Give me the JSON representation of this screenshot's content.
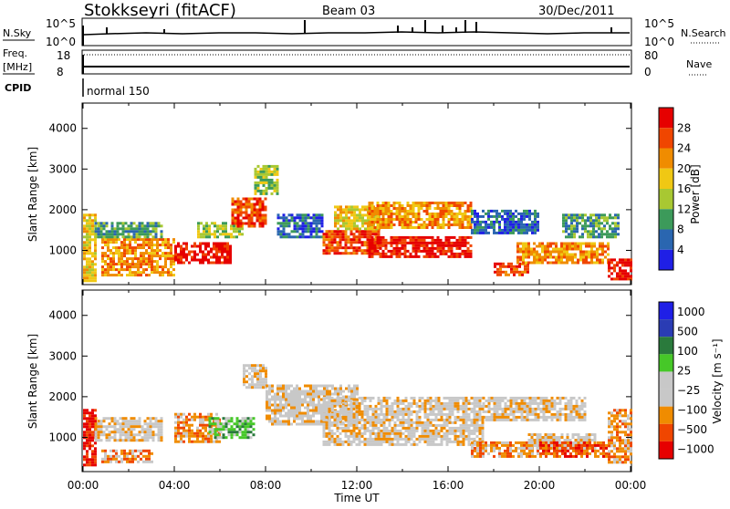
{
  "header": {
    "radar": "Stokkseyri (fitACF)",
    "beam": "Beam 03",
    "date": "30/Dec/2011"
  },
  "aux_panels": {
    "nsky_label": "N.Sky",
    "nsky_ticks": [
      "10^5",
      "10^0"
    ],
    "nsearch_label": "N.Search",
    "nsearch_ticks": [
      "10^5",
      "10^0"
    ],
    "freq_label": "Freq.",
    "freq_unit": "[MHz]",
    "freq_ticks": [
      "18",
      "8"
    ],
    "nave_label": "Nave",
    "nave_ticks": [
      "80",
      "0"
    ],
    "cpid_label": "CPID",
    "cpid_value": "normal 150"
  },
  "colors": {
    "power": [
      "#1f1fe6",
      "#2a66b0",
      "#3c9a5a",
      "#a8c832",
      "#f0c814",
      "#f08c00",
      "#f04600",
      "#e60000"
    ],
    "velocity": [
      "#e60000",
      "#f04600",
      "#f08c00",
      "#c8c8c8",
      "#c8c8c8",
      "#46c828",
      "#2a7a3c",
      "#2a3cb4",
      "#1f1fe6"
    ]
  },
  "chart_data": [
    {
      "type": "heatmap",
      "title": "Power",
      "ylabel": "Slant Range [km]",
      "xlabel": "Time UT",
      "xlim": [
        0,
        24
      ],
      "ylim": [
        180,
        4600
      ],
      "x_ticks": [
        "00:00",
        "04:00",
        "08:00",
        "12:00",
        "16:00",
        "20:00",
        "00:00"
      ],
      "y_ticks": [
        "1000",
        "2000",
        "3000",
        "4000"
      ],
      "colorbar": {
        "label": "Power [dB]",
        "ticks": [
          "28",
          "24",
          "20",
          "16",
          "12",
          "8",
          "4"
        ]
      },
      "regions": [
        {
          "x": [
            0.0,
            0.5
          ],
          "y": [
            250,
            1900
          ],
          "level": 4
        },
        {
          "x": [
            0.8,
            4.0
          ],
          "y": [
            400,
            1300
          ],
          "level": 5
        },
        {
          "x": [
            0.5,
            3.5
          ],
          "y": [
            1300,
            1700
          ],
          "level": 2
        },
        {
          "x": [
            4.0,
            6.5
          ],
          "y": [
            700,
            1200
          ],
          "level": 7
        },
        {
          "x": [
            5.0,
            7.0
          ],
          "y": [
            1300,
            1700
          ],
          "level": 3
        },
        {
          "x": [
            6.5,
            8.0
          ],
          "y": [
            1600,
            2300
          ],
          "level": 6
        },
        {
          "x": [
            7.5,
            8.5
          ],
          "y": [
            2400,
            3100
          ],
          "level": 3
        },
        {
          "x": [
            8.5,
            10.5
          ],
          "y": [
            1300,
            1900
          ],
          "level": 1
        },
        {
          "x": [
            10.5,
            13.0
          ],
          "y": [
            900,
            1500
          ],
          "level": 6
        },
        {
          "x": [
            11.0,
            13.0
          ],
          "y": [
            1500,
            2100
          ],
          "level": 4
        },
        {
          "x": [
            12.5,
            17.0
          ],
          "y": [
            850,
            1350
          ],
          "level": 7
        },
        {
          "x": [
            12.5,
            17.0
          ],
          "y": [
            1550,
            2200
          ],
          "level": 5
        },
        {
          "x": [
            17.0,
            20.0
          ],
          "y": [
            1400,
            2000
          ],
          "level": 1
        },
        {
          "x": [
            18.0,
            19.5
          ],
          "y": [
            400,
            700
          ],
          "level": 6
        },
        {
          "x": [
            19.0,
            23.0
          ],
          "y": [
            700,
            1200
          ],
          "level": 5
        },
        {
          "x": [
            21.0,
            23.5
          ],
          "y": [
            1300,
            1900
          ],
          "level": 2
        },
        {
          "x": [
            23.0,
            24.0
          ],
          "y": [
            300,
            800
          ],
          "level": 7
        }
      ]
    },
    {
      "type": "heatmap",
      "title": "Velocity",
      "ylabel": "Slant Range [km]",
      "xlabel": "Time UT",
      "xlim": [
        0,
        24
      ],
      "ylim": [
        180,
        4600
      ],
      "x_ticks": [
        "00:00",
        "04:00",
        "08:00",
        "12:00",
        "16:00",
        "20:00",
        "00:00"
      ],
      "y_ticks": [
        "1000",
        "2000",
        "3000",
        "4000"
      ],
      "colorbar": {
        "label": "Velocity [m s⁻¹]",
        "ticks": [
          "1000",
          "500",
          "100",
          "25",
          "−25",
          "−100",
          "−500",
          "−1000"
        ]
      },
      "regions": [
        {
          "x": [
            0.0,
            0.6
          ],
          "y": [
            300,
            1700
          ],
          "level": 0
        },
        {
          "x": [
            0.8,
            3.0
          ],
          "y": [
            400,
            700
          ],
          "level": 2
        },
        {
          "x": [
            0.5,
            3.5
          ],
          "y": [
            900,
            1500
          ],
          "level": 3
        },
        {
          "x": [
            4.0,
            6.0
          ],
          "y": [
            900,
            1600
          ],
          "level": 2
        },
        {
          "x": [
            5.5,
            7.5
          ],
          "y": [
            1000,
            1500
          ],
          "level": 5
        },
        {
          "x": [
            7.0,
            8.0
          ],
          "y": [
            2200,
            2800
          ],
          "level": 3
        },
        {
          "x": [
            8.0,
            12.0
          ],
          "y": [
            1300,
            2300
          ],
          "level": 3
        },
        {
          "x": [
            10.5,
            17.5
          ],
          "y": [
            800,
            2000
          ],
          "level": 3
        },
        {
          "x": [
            17.0,
            20.0
          ],
          "y": [
            500,
            900
          ],
          "level": 2
        },
        {
          "x": [
            17.5,
            22.0
          ],
          "y": [
            1400,
            2000
          ],
          "level": 3
        },
        {
          "x": [
            19.5,
            22.5
          ],
          "y": [
            700,
            1100
          ],
          "level": 3
        },
        {
          "x": [
            20.0,
            23.0
          ],
          "y": [
            500,
            900
          ],
          "level": 1
        },
        {
          "x": [
            23.0,
            24.0
          ],
          "y": [
            400,
            1700
          ],
          "level": 2
        }
      ]
    }
  ]
}
